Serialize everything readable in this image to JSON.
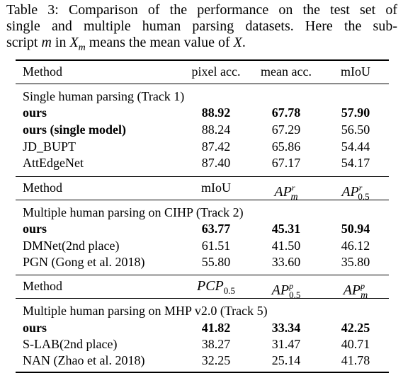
{
  "caption": {
    "line1": "Table 3: Comparison of the performance on the test set of",
    "line2": "single and multiple human parsing datasets. Here the sub-",
    "line3_a": "script ",
    "line3_m": "m",
    "line3_b": " in ",
    "line3_X": "X",
    "line3_sub": "m",
    "line3_c": " means the mean value of ",
    "line3_X2": "X",
    "line3_d": "."
  },
  "header1": {
    "method": "Method",
    "col1": "pixel acc.",
    "col2": "mean acc.",
    "col3": "mIoU"
  },
  "track1": {
    "title": "Single human parsing (Track 1)",
    "rows": [
      {
        "method": "ours",
        "v1": "88.92",
        "v2": "67.78",
        "v3": "57.90"
      },
      {
        "method": "ours (single model)",
        "v1": "88.24",
        "v2": "67.29",
        "v3": "56.50"
      },
      {
        "method": "JD_BUPT",
        "v1": "87.42",
        "v2": "65.86",
        "v3": "54.44"
      },
      {
        "method": "AttEdgeNet",
        "v1": "87.40",
        "v2": "67.17",
        "v3": "54.17"
      }
    ]
  },
  "header2": {
    "method": "Method",
    "col1": "mIoU",
    "col2_base": "AP",
    "col2_sup": "r",
    "col2_sub": "m",
    "col3_base": "AP",
    "col3_sup": "r",
    "col3_sub": "0.5"
  },
  "track2": {
    "title": "Multiple human parsing on CIHP (Track 2)",
    "rows": [
      {
        "method": "ours",
        "v1": "63.77",
        "v2": "45.31",
        "v3": "50.94"
      },
      {
        "method": "DMNet(2nd place)",
        "v1": "61.51",
        "v2": "41.50",
        "v3": "46.12"
      },
      {
        "method": "PGN (Gong et al. 2018)",
        "v1": "55.80",
        "v2": "33.60",
        "v3": "35.80"
      }
    ]
  },
  "header3": {
    "method": "Method",
    "col1_base": "PCP",
    "col1_sub": "0.5",
    "col2_base": "AP",
    "col2_sup": "p",
    "col2_sub": "0.5",
    "col3_base": "AP",
    "col3_sup": "p",
    "col3_sub": "m"
  },
  "track5": {
    "title": "Multiple human parsing on MHP v2.0 (Track 5)",
    "rows": [
      {
        "method": "ours",
        "v1": "41.82",
        "v2": "33.34",
        "v3": "42.25"
      },
      {
        "method": "S-LAB(2nd place)",
        "v1": "38.27",
        "v2": "31.47",
        "v3": "40.71"
      },
      {
        "method": "NAN (Zhao et al. 2018)",
        "v1": "32.25",
        "v2": "25.14",
        "v3": "41.78"
      }
    ]
  }
}
